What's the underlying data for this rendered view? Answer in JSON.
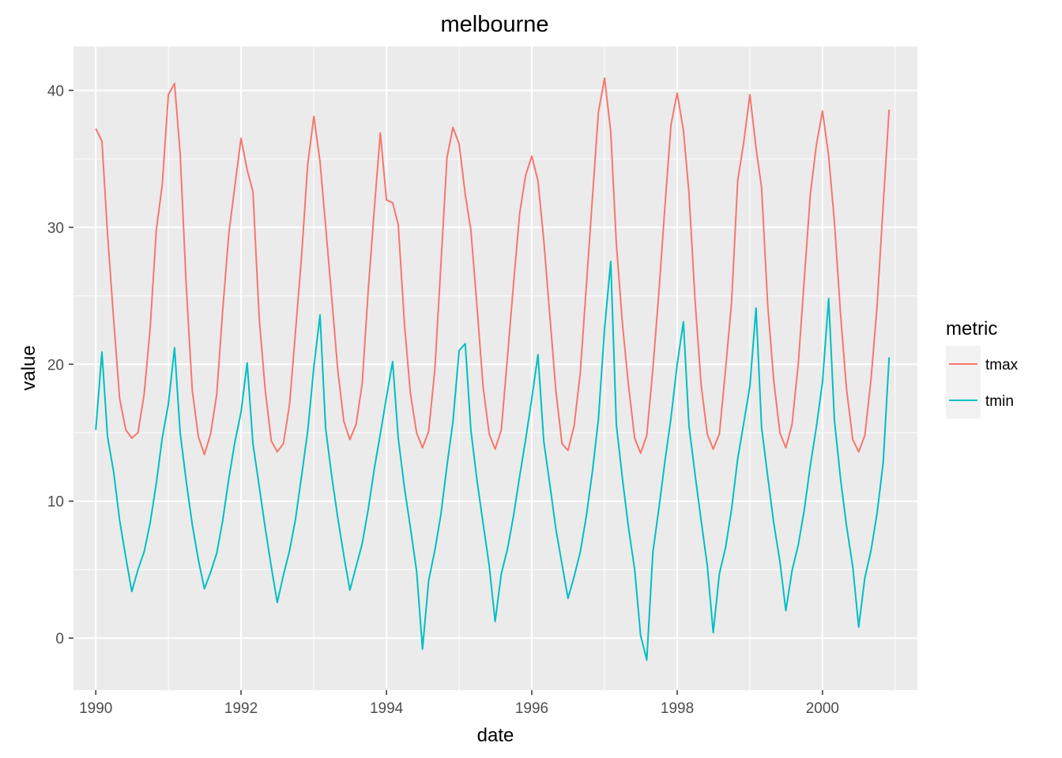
{
  "chart_data": {
    "type": "line",
    "title": "melbourne",
    "xlabel": "date",
    "ylabel": "value",
    "x_range": [
      "1989-09-11",
      "2001-04-22"
    ],
    "xlim": [
      "1989-09-11",
      "2001-04-22"
    ],
    "ylim": [
      -3.8,
      43.2
    ],
    "x_ticks": [
      "1990",
      "1992",
      "1994",
      "1996",
      "1998",
      "2000"
    ],
    "x_tick_dates": [
      "1990-01-01",
      "1992-01-01",
      "1994-01-01",
      "1996-01-01",
      "1998-01-01",
      "2000-01-01"
    ],
    "y_ticks": [
      0,
      10,
      20,
      30,
      40
    ],
    "grid": true,
    "legend": {
      "title": "metric",
      "placement": "right",
      "entries": [
        "tmax",
        "tmin"
      ]
    },
    "series": [
      {
        "name": "tmax",
        "color": "#f8766d",
        "points": [
          [
            "1990-01-01",
            37.2
          ],
          [
            "1990-02-01",
            36.3
          ],
          [
            "1990-03-01",
            29.5
          ],
          [
            "1990-04-01",
            23.2
          ],
          [
            "1990-05-01",
            17.5
          ],
          [
            "1990-06-01",
            15.2
          ],
          [
            "1990-07-01",
            14.6
          ],
          [
            "1990-08-01",
            15.0
          ],
          [
            "1990-09-01",
            17.8
          ],
          [
            "1990-10-01",
            22.6
          ],
          [
            "1990-11-01",
            29.8
          ],
          [
            "1990-12-01",
            33.1
          ],
          [
            "1991-01-01",
            39.7
          ],
          [
            "1991-02-01",
            40.5
          ],
          [
            "1991-03-01",
            35.4
          ],
          [
            "1991-04-01",
            25.6
          ],
          [
            "1991-05-01",
            18.1
          ],
          [
            "1991-06-01",
            14.7
          ],
          [
            "1991-07-01",
            13.4
          ],
          [
            "1991-08-01",
            14.9
          ],
          [
            "1991-09-01",
            17.8
          ],
          [
            "1991-10-01",
            24.0
          ],
          [
            "1991-11-01",
            29.6
          ],
          [
            "1991-12-01",
            33.0
          ],
          [
            "1992-01-01",
            36.5
          ],
          [
            "1992-02-01",
            34.2
          ],
          [
            "1992-03-01",
            32.6
          ],
          [
            "1992-04-01",
            23.4
          ],
          [
            "1992-05-01",
            18.2
          ],
          [
            "1992-06-01",
            14.4
          ],
          [
            "1992-07-01",
            13.6
          ],
          [
            "1992-08-01",
            14.2
          ],
          [
            "1992-09-01",
            17.1
          ],
          [
            "1992-10-01",
            22.4
          ],
          [
            "1992-11-01",
            28.0
          ],
          [
            "1992-12-01",
            34.6
          ],
          [
            "1993-01-01",
            38.1
          ],
          [
            "1993-02-01",
            34.8
          ],
          [
            "1993-03-01",
            30.1
          ],
          [
            "1993-04-01",
            24.8
          ],
          [
            "1993-05-01",
            19.6
          ],
          [
            "1993-06-01",
            15.8
          ],
          [
            "1993-07-01",
            14.5
          ],
          [
            "1993-08-01",
            15.6
          ],
          [
            "1993-09-01",
            18.6
          ],
          [
            "1993-10-01",
            25.4
          ],
          [
            "1993-11-01",
            31.4
          ],
          [
            "1993-12-01",
            36.9
          ],
          [
            "1994-01-01",
            32.0
          ],
          [
            "1994-02-01",
            31.8
          ],
          [
            "1994-03-01",
            30.2
          ],
          [
            "1994-04-01",
            23.0
          ],
          [
            "1994-05-01",
            17.9
          ],
          [
            "1994-06-01",
            15.0
          ],
          [
            "1994-07-01",
            13.9
          ],
          [
            "1994-08-01",
            15.1
          ],
          [
            "1994-09-01",
            19.6
          ],
          [
            "1994-10-01",
            27.2
          ],
          [
            "1994-11-01",
            35.1
          ],
          [
            "1994-12-01",
            37.3
          ],
          [
            "1995-01-01",
            36.1
          ],
          [
            "1995-02-01",
            32.4
          ],
          [
            "1995-03-01",
            29.8
          ],
          [
            "1995-04-01",
            24.2
          ],
          [
            "1995-05-01",
            18.4
          ],
          [
            "1995-06-01",
            14.9
          ],
          [
            "1995-07-01",
            13.8
          ],
          [
            "1995-08-01",
            15.2
          ],
          [
            "1995-09-01",
            20.5
          ],
          [
            "1995-10-01",
            25.8
          ],
          [
            "1995-11-01",
            31.0
          ],
          [
            "1995-12-01",
            33.8
          ],
          [
            "1996-01-01",
            35.2
          ],
          [
            "1996-02-01",
            33.4
          ],
          [
            "1996-03-01",
            29.1
          ],
          [
            "1996-04-01",
            23.5
          ],
          [
            "1996-05-01",
            18.1
          ],
          [
            "1996-06-01",
            14.2
          ],
          [
            "1996-07-01",
            13.7
          ],
          [
            "1996-08-01",
            15.5
          ],
          [
            "1996-09-01",
            19.4
          ],
          [
            "1996-10-01",
            25.7
          ],
          [
            "1996-11-01",
            32.2
          ],
          [
            "1996-12-01",
            38.4
          ],
          [
            "1997-01-01",
            40.9
          ],
          [
            "1997-02-01",
            37.0
          ],
          [
            "1997-03-01",
            28.8
          ],
          [
            "1997-04-01",
            22.9
          ],
          [
            "1997-05-01",
            18.5
          ],
          [
            "1997-06-01",
            14.6
          ],
          [
            "1997-07-01",
            13.5
          ],
          [
            "1997-08-01",
            14.8
          ],
          [
            "1997-09-01",
            19.7
          ],
          [
            "1997-10-01",
            25.3
          ],
          [
            "1997-11-01",
            31.7
          ],
          [
            "1997-12-01",
            37.5
          ],
          [
            "1998-01-01",
            39.8
          ],
          [
            "1998-02-01",
            37.1
          ],
          [
            "1998-03-01",
            32.5
          ],
          [
            "1998-04-01",
            24.6
          ],
          [
            "1998-05-01",
            18.5
          ],
          [
            "1998-06-01",
            14.9
          ],
          [
            "1998-07-01",
            13.8
          ],
          [
            "1998-08-01",
            14.9
          ],
          [
            "1998-09-01",
            19.6
          ],
          [
            "1998-10-01",
            24.5
          ],
          [
            "1998-11-01",
            33.4
          ],
          [
            "1998-12-01",
            36.2
          ],
          [
            "1999-01-01",
            39.7
          ],
          [
            "1999-02-01",
            35.8
          ],
          [
            "1999-03-01",
            32.9
          ],
          [
            "1999-04-01",
            24.3
          ],
          [
            "1999-05-01",
            18.8
          ],
          [
            "1999-06-01",
            15.0
          ],
          [
            "1999-07-01",
            13.9
          ],
          [
            "1999-08-01",
            15.6
          ],
          [
            "1999-09-01",
            20.0
          ],
          [
            "1999-10-01",
            26.1
          ],
          [
            "1999-11-01",
            32.4
          ],
          [
            "1999-12-01",
            36.0
          ],
          [
            "2000-01-01",
            38.5
          ],
          [
            "2000-02-01",
            35.2
          ],
          [
            "2000-03-01",
            30.4
          ],
          [
            "2000-04-01",
            23.6
          ],
          [
            "2000-05-01",
            18.2
          ],
          [
            "2000-06-01",
            14.5
          ],
          [
            "2000-07-01",
            13.6
          ],
          [
            "2000-08-01",
            14.8
          ],
          [
            "2000-09-01",
            18.9
          ],
          [
            "2000-10-01",
            24.2
          ],
          [
            "2000-11-01",
            31.6
          ],
          [
            "2000-12-01",
            38.6
          ]
        ]
      },
      {
        "name": "tmin",
        "color": "#00bfc4",
        "points": [
          [
            "1990-01-01",
            15.2
          ],
          [
            "1990-02-01",
            20.9
          ],
          [
            "1990-03-01",
            14.7
          ],
          [
            "1990-04-01",
            12.1
          ],
          [
            "1990-05-01",
            8.6
          ],
          [
            "1990-06-01",
            5.9
          ],
          [
            "1990-07-01",
            3.4
          ],
          [
            "1990-08-01",
            5.0
          ],
          [
            "1990-09-01",
            6.3
          ],
          [
            "1990-10-01",
            8.4
          ],
          [
            "1990-11-01",
            11.3
          ],
          [
            "1990-12-01",
            14.6
          ],
          [
            "1991-01-01",
            17.1
          ],
          [
            "1991-02-01",
            21.2
          ],
          [
            "1991-03-01",
            15.0
          ],
          [
            "1991-04-01",
            11.4
          ],
          [
            "1991-05-01",
            8.3
          ],
          [
            "1991-06-01",
            5.7
          ],
          [
            "1991-07-01",
            3.6
          ],
          [
            "1991-08-01",
            4.8
          ],
          [
            "1991-09-01",
            6.2
          ],
          [
            "1991-10-01",
            8.6
          ],
          [
            "1991-11-01",
            11.7
          ],
          [
            "1991-12-01",
            14.3
          ],
          [
            "1992-01-01",
            16.5
          ],
          [
            "1992-02-01",
            20.1
          ],
          [
            "1992-03-01",
            14.2
          ],
          [
            "1992-04-01",
            11.1
          ],
          [
            "1992-05-01",
            8.1
          ],
          [
            "1992-06-01",
            5.2
          ],
          [
            "1992-07-01",
            2.6
          ],
          [
            "1992-08-01",
            4.6
          ],
          [
            "1992-09-01",
            6.4
          ],
          [
            "1992-10-01",
            8.7
          ],
          [
            "1992-11-01",
            11.9
          ],
          [
            "1992-12-01",
            15.1
          ],
          [
            "1993-01-01",
            19.8
          ],
          [
            "1993-02-01",
            23.6
          ],
          [
            "1993-03-01",
            15.3
          ],
          [
            "1993-04-01",
            11.8
          ],
          [
            "1993-05-01",
            8.8
          ],
          [
            "1993-06-01",
            6.0
          ],
          [
            "1993-07-01",
            3.5
          ],
          [
            "1993-08-01",
            5.2
          ],
          [
            "1993-09-01",
            6.9
          ],
          [
            "1993-10-01",
            9.4
          ],
          [
            "1993-11-01",
            12.4
          ],
          [
            "1993-12-01",
            14.9
          ],
          [
            "1994-01-01",
            17.6
          ],
          [
            "1994-02-01",
            20.2
          ],
          [
            "1994-03-01",
            14.6
          ],
          [
            "1994-04-01",
            11.0
          ],
          [
            "1994-05-01",
            8.1
          ],
          [
            "1994-06-01",
            4.9
          ],
          [
            "1994-07-01",
            -0.8
          ],
          [
            "1994-08-01",
            4.2
          ],
          [
            "1994-09-01",
            6.4
          ],
          [
            "1994-10-01",
            9.0
          ],
          [
            "1994-11-01",
            12.6
          ],
          [
            "1994-12-01",
            15.8
          ],
          [
            "1995-01-01",
            21.0
          ],
          [
            "1995-02-01",
            21.5
          ],
          [
            "1995-03-01",
            15.2
          ],
          [
            "1995-04-01",
            11.5
          ],
          [
            "1995-05-01",
            8.4
          ],
          [
            "1995-06-01",
            5.3
          ],
          [
            "1995-07-01",
            1.2
          ],
          [
            "1995-08-01",
            4.7
          ],
          [
            "1995-09-01",
            6.5
          ],
          [
            "1995-10-01",
            8.9
          ],
          [
            "1995-11-01",
            11.8
          ],
          [
            "1995-12-01",
            14.5
          ],
          [
            "1996-01-01",
            17.5
          ],
          [
            "1996-02-01",
            20.7
          ],
          [
            "1996-03-01",
            14.4
          ],
          [
            "1996-04-01",
            11.2
          ],
          [
            "1996-05-01",
            8.0
          ],
          [
            "1996-06-01",
            5.4
          ],
          [
            "1996-07-01",
            2.9
          ],
          [
            "1996-08-01",
            4.5
          ],
          [
            "1996-09-01",
            6.3
          ],
          [
            "1996-10-01",
            8.9
          ],
          [
            "1996-11-01",
            12.2
          ],
          [
            "1996-12-01",
            16.0
          ],
          [
            "1997-01-01",
            22.6
          ],
          [
            "1997-02-01",
            27.5
          ],
          [
            "1997-03-01",
            15.6
          ],
          [
            "1997-04-01",
            11.6
          ],
          [
            "1997-05-01",
            8.1
          ],
          [
            "1997-06-01",
            5.0
          ],
          [
            "1997-07-01",
            0.2
          ],
          [
            "1997-08-01",
            -1.6
          ],
          [
            "1997-09-01",
            6.3
          ],
          [
            "1997-10-01",
            9.5
          ],
          [
            "1997-11-01",
            13.0
          ],
          [
            "1997-12-01",
            16.1
          ],
          [
            "1998-01-01",
            20.0
          ],
          [
            "1998-02-01",
            23.1
          ],
          [
            "1998-03-01",
            15.5
          ],
          [
            "1998-04-01",
            11.9
          ],
          [
            "1998-05-01",
            8.6
          ],
          [
            "1998-06-01",
            5.3
          ],
          [
            "1998-07-01",
            0.4
          ],
          [
            "1998-08-01",
            4.7
          ],
          [
            "1998-09-01",
            6.6
          ],
          [
            "1998-10-01",
            9.4
          ],
          [
            "1998-11-01",
            13.1
          ],
          [
            "1998-12-01",
            15.7
          ],
          [
            "1999-01-01",
            18.4
          ],
          [
            "1999-02-01",
            24.1
          ],
          [
            "1999-03-01",
            15.4
          ],
          [
            "1999-04-01",
            11.8
          ],
          [
            "1999-05-01",
            8.4
          ],
          [
            "1999-06-01",
            5.6
          ],
          [
            "1999-07-01",
            2.0
          ],
          [
            "1999-08-01",
            4.9
          ],
          [
            "1999-09-01",
            6.8
          ],
          [
            "1999-10-01",
            9.3
          ],
          [
            "1999-11-01",
            12.6
          ],
          [
            "1999-12-01",
            15.4
          ],
          [
            "2000-01-01",
            18.7
          ],
          [
            "2000-02-01",
            24.8
          ],
          [
            "2000-03-01",
            15.9
          ],
          [
            "2000-04-01",
            11.6
          ],
          [
            "2000-05-01",
            8.2
          ],
          [
            "2000-06-01",
            5.2
          ],
          [
            "2000-07-01",
            0.8
          ],
          [
            "2000-08-01",
            4.4
          ],
          [
            "2000-09-01",
            6.4
          ],
          [
            "2000-10-01",
            9.1
          ],
          [
            "2000-11-01",
            12.8
          ],
          [
            "2000-12-01",
            20.5
          ]
        ]
      }
    ]
  }
}
